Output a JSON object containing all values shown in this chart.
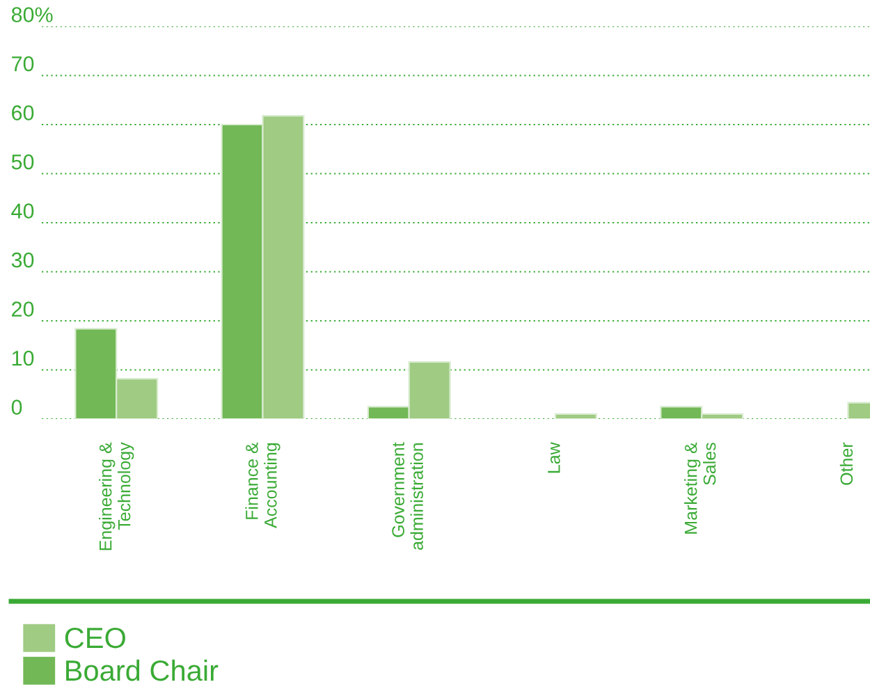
{
  "chart_data": {
    "type": "bar",
    "categories": [
      "Engineering &\nTechnology",
      "Finance &\nAccounting",
      "Government\nadministration",
      "Law",
      "Marketing &\nSales",
      "Other"
    ],
    "series": [
      {
        "name": "Board Chair",
        "color": "#72b856",
        "values": [
          18.4,
          60,
          2.5,
          null,
          2.5,
          null
        ]
      },
      {
        "name": "CEO",
        "color": "#9fcb83",
        "values": [
          8.2,
          61.8,
          11.6,
          1,
          1,
          3.3
        ]
      }
    ],
    "ylim": [
      0,
      80
    ],
    "yticks": [
      0,
      10,
      20,
      30,
      40,
      50,
      60,
      70,
      {
        "value": 80,
        "label": "80%"
      }
    ],
    "grid": "y",
    "legend": "bottom"
  }
}
